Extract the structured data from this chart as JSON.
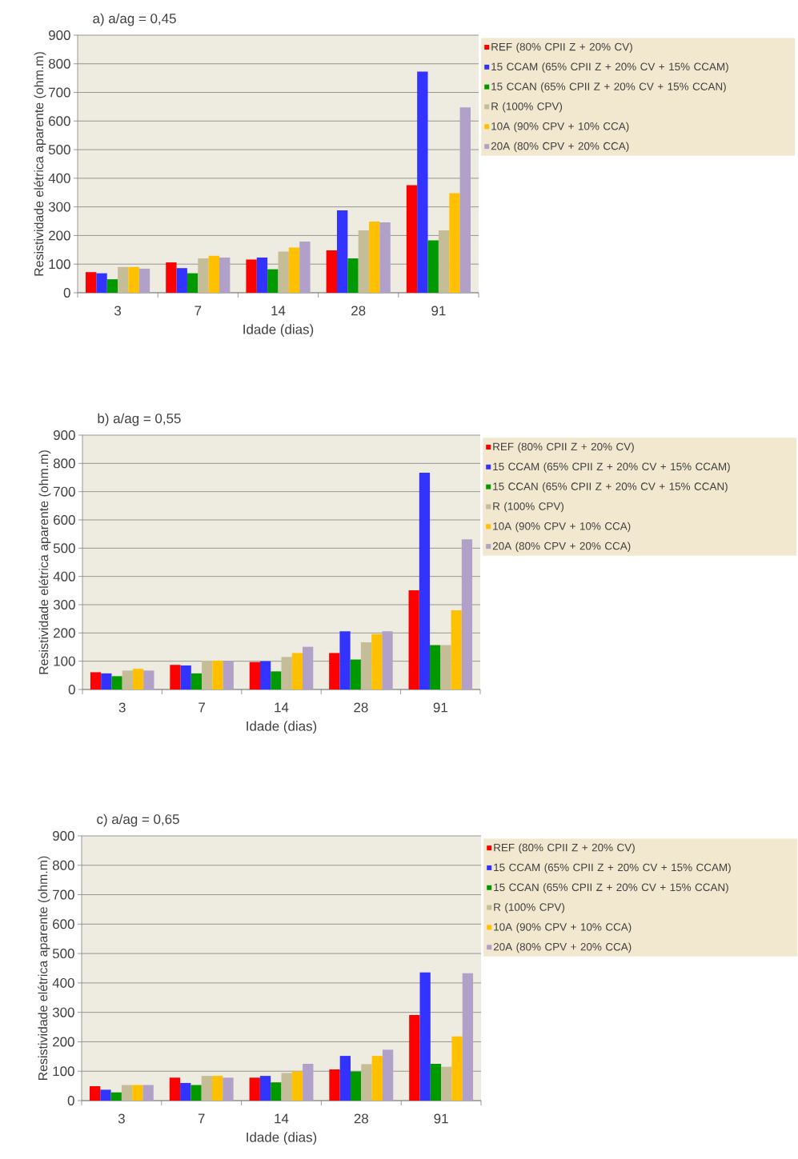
{
  "chart_data": [
    {
      "type": "bar",
      "title": "a) a/ag = 0,45",
      "xlabel": "Idade (dias)",
      "ylabel": "Resistividade elétrica aparente (ohm.m)",
      "categories": [
        "3",
        "7",
        "14",
        "28",
        "91"
      ],
      "ylim": [
        0,
        900
      ],
      "yticks": [
        0,
        100,
        200,
        300,
        400,
        500,
        600,
        700,
        800,
        900
      ],
      "grid": "y",
      "legend": "right",
      "series": [
        {
          "name": "REF (80% CPII Z + 20% CV)",
          "color": "#ff0000",
          "values": [
            72,
            106,
            116,
            148,
            376
          ]
        },
        {
          "name": "15 CCAM (65% CPII Z + 20% CV + 15% CCAM)",
          "color": "#3333ff",
          "values": [
            68,
            86,
            123,
            288,
            773
          ]
        },
        {
          "name": "15 CCAN (65% CPII Z + 20% CV + 15% CCAN)",
          "color": "#009900",
          "values": [
            47,
            68,
            82,
            120,
            183
          ]
        },
        {
          "name": "R (100% CPV)",
          "color": "#c4bd97",
          "values": [
            90,
            120,
            144,
            218,
            218
          ]
        },
        {
          "name": "10A (90% CPV + 10% CCA)",
          "color": "#ffc000",
          "values": [
            90,
            129,
            158,
            249,
            348
          ]
        },
        {
          "name": "20A (80% CPV + 20% CCA)",
          "color": "#b1a0c7",
          "values": [
            84,
            123,
            179,
            246,
            648
          ]
        }
      ]
    },
    {
      "type": "bar",
      "title": "b) a/ag = 0,55",
      "xlabel": "Idade (dias)",
      "ylabel": "Resistividade elétrica aparente (ohm.m)",
      "categories": [
        "3",
        "7",
        "14",
        "28",
        "91"
      ],
      "ylim": [
        0,
        900
      ],
      "yticks": [
        0,
        100,
        200,
        300,
        400,
        500,
        600,
        700,
        800,
        900
      ],
      "grid": "y",
      "legend": "right",
      "series": [
        {
          "name": "REF (80% CPII Z + 20% CV)",
          "color": "#ff0000",
          "values": [
            61,
            87,
            97,
            129,
            351
          ]
        },
        {
          "name": "15 CCAM (65% CPII Z + 20% CV + 15% CCAM)",
          "color": "#3333ff",
          "values": [
            57,
            85,
            100,
            206,
            767
          ]
        },
        {
          "name": "15 CCAN (65% CPII Z + 20% CV + 15% CCAN)",
          "color": "#009900",
          "values": [
            47,
            57,
            64,
            106,
            157
          ]
        },
        {
          "name": "R (100% CPV)",
          "color": "#c4bd97",
          "values": [
            67,
            102,
            115,
            167,
            157
          ]
        },
        {
          "name": "10A (90% CPV + 10% CCA)",
          "color": "#ffc000",
          "values": [
            73,
            102,
            129,
            196,
            280
          ]
        },
        {
          "name": "20A (80% CPV + 20% CCA)",
          "color": "#b1a0c7",
          "values": [
            67,
            100,
            151,
            206,
            531
          ]
        }
      ]
    },
    {
      "type": "bar",
      "title": "c) a/ag = 0,65",
      "xlabel": "Idade (dias)",
      "ylabel": "Resistividade elétrica aparente (ohm.m)",
      "categories": [
        "3",
        "7",
        "14",
        "28",
        "91"
      ],
      "ylim": [
        0,
        900
      ],
      "yticks": [
        0,
        100,
        200,
        300,
        400,
        500,
        600,
        700,
        800,
        900
      ],
      "grid": "y",
      "legend": "right",
      "series": [
        {
          "name": "REF (80% CPII Z + 20% CV)",
          "color": "#ff0000",
          "values": [
            49,
            78,
            78,
            106,
            291
          ]
        },
        {
          "name": "15 CCAM (65% CPII Z + 20% CV + 15% CCAM)",
          "color": "#3333ff",
          "values": [
            37,
            60,
            84,
            152,
            436
          ]
        },
        {
          "name": "15 CCAN (65% CPII Z + 20% CV + 15% CCAN)",
          "color": "#009900",
          "values": [
            28,
            53,
            62,
            99,
            125
          ]
        },
        {
          "name": "R (100% CPV)",
          "color": "#c4bd97",
          "values": [
            53,
            84,
            94,
            124,
            115
          ]
        },
        {
          "name": "10A (90% CPV + 10% CCA)",
          "color": "#ffc000",
          "values": [
            53,
            84,
            99,
            152,
            218
          ]
        },
        {
          "name": "20A (80% CPV + 20% CCA)",
          "color": "#b1a0c7",
          "values": [
            53,
            78,
            125,
            173,
            433
          ]
        }
      ]
    }
  ]
}
